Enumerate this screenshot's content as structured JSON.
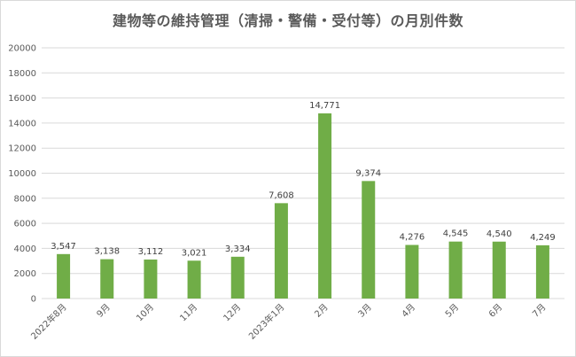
{
  "chart_data": {
    "type": "bar",
    "title": "建物等の維持管理（清掃・警備・受付等）の月別件数",
    "xlabel": "",
    "ylabel": "",
    "categories": [
      "2022年8月",
      "9月",
      "10月",
      "11月",
      "12月",
      "2023年1月",
      "2月",
      "3月",
      "4月",
      "5月",
      "6月",
      "7月"
    ],
    "values": [
      3547,
      3138,
      3112,
      3021,
      3334,
      7608,
      14771,
      9374,
      4276,
      4545,
      4540,
      4249
    ],
    "data_labels": [
      "3,547",
      "3,138",
      "3,112",
      "3,021",
      "3,334",
      "7,608",
      "14,771",
      "9,374",
      "4,276",
      "4,545",
      "4,540",
      "4,249"
    ],
    "ylim": [
      0,
      20000
    ],
    "yticks": [
      0,
      2000,
      4000,
      6000,
      8000,
      10000,
      12000,
      14000,
      16000,
      18000,
      20000
    ],
    "grid": true,
    "legend": "none",
    "bar_color": "#70ad47",
    "grid_color": "#d9d9d9",
    "axis_text_color": "#595959"
  }
}
